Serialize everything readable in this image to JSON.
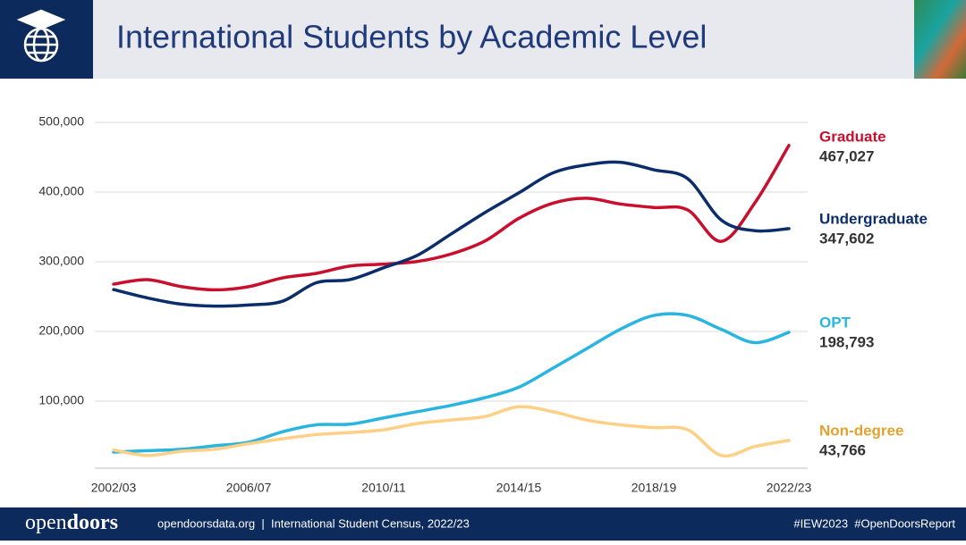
{
  "header": {
    "title": "International Students by Academic Level"
  },
  "footer": {
    "brand_light": "open",
    "brand_bold": "doors",
    "source": "opendoorsdata.org  |  International Student Census, 2022/23",
    "tags": "#IEW2023  #OpenDoorsReport"
  },
  "chart_data": {
    "type": "line",
    "categories": [
      "2002/03",
      null,
      null,
      null,
      "2006/07",
      null,
      null,
      null,
      "2010/11",
      null,
      null,
      null,
      "2014/15",
      null,
      null,
      null,
      "2018/19",
      null,
      null,
      null,
      "2022/23"
    ],
    "ylim": [
      0,
      500000
    ],
    "yticks": [
      {
        "value": 100000,
        "label": "100,000"
      },
      {
        "value": 200000,
        "label": "200,000"
      },
      {
        "value": 300000,
        "label": "300,000"
      },
      {
        "value": 400000,
        "label": "400,000"
      },
      {
        "value": 500000,
        "label": "500,000"
      }
    ],
    "grid": true,
    "series": [
      {
        "name": "Graduate",
        "color": "#c8102e",
        "values": [
          267876,
          274310,
          264410,
          259717,
          264288,
          276842,
          283329,
          293885,
          296574,
          300430,
          311204,
          329854,
          362228,
          383935,
          391124,
          382953,
          377943,
          374435,
          329272,
          385097,
          467027
        ],
        "value_labels": [
          null,
          null,
          null,
          null,
          null,
          null,
          null,
          null,
          null,
          null,
          null,
          null,
          null,
          null,
          null,
          null,
          null,
          null,
          null,
          null,
          "467,027"
        ]
      },
      {
        "name": "Undergraduate",
        "color": "#0c2d6b",
        "values": [
          260103,
          248200,
          239212,
          236342,
          238050,
          243360,
          269874,
          274431,
          291439,
          309342,
          339993,
          370724,
          398824,
          427313,
          439019,
          442746,
          431930,
          419321,
          359787,
          344532,
          347602
        ],
        "value_labels": [
          null,
          null,
          null,
          null,
          null,
          null,
          null,
          null,
          null,
          null,
          null,
          null,
          null,
          null,
          null,
          null,
          null,
          null,
          null,
          null,
          "347,602"
        ]
      },
      {
        "name": "OPT",
        "color": "#2ab5e0",
        "values": [
          27000,
          29000,
          31000,
          36000,
          41000,
          56000,
          66000,
          67000,
          76000,
          85000,
          94000,
          105000,
          120000,
          147000,
          175000,
          203000,
          223000,
          223000,
          203000,
          184000,
          198793
        ],
        "value_labels": [
          null,
          null,
          null,
          null,
          null,
          null,
          null,
          null,
          null,
          null,
          null,
          null,
          null,
          null,
          null,
          null,
          null,
          null,
          null,
          null,
          "198,793"
        ]
      },
      {
        "name": "Non-degree",
        "color": "#fdd085",
        "label_color": "#e3a12f",
        "values": [
          30000,
          22000,
          28000,
          31000,
          39000,
          46000,
          52000,
          55000,
          59000,
          68000,
          73000,
          78000,
          92000,
          85000,
          73000,
          66000,
          62000,
          59000,
          22000,
          35000,
          43766
        ],
        "value_labels": [
          null,
          null,
          null,
          null,
          null,
          null,
          null,
          null,
          null,
          null,
          null,
          null,
          null,
          null,
          null,
          null,
          null,
          null,
          null,
          null,
          "43,766"
        ]
      }
    ]
  }
}
